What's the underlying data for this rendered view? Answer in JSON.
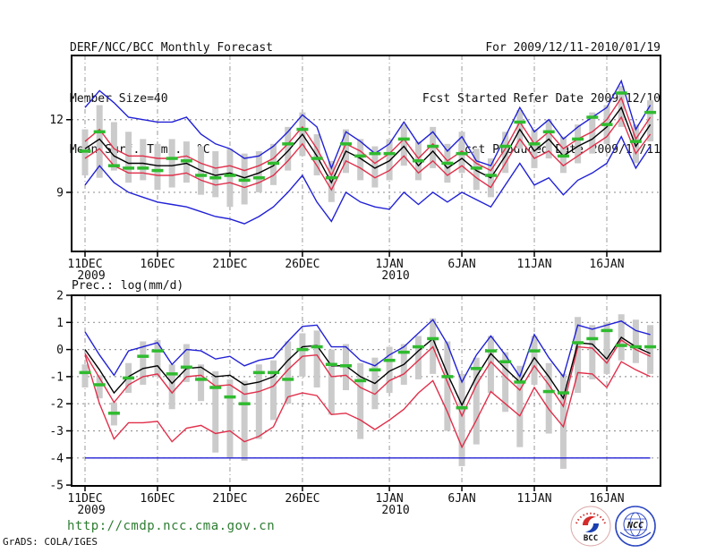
{
  "header": {
    "title": "DERF/NCC/BCC Monthly Forecast",
    "member_size": "Member Size=40",
    "temp_label": "Mean Surf. Temp.: °C",
    "for_range": "For 2009/12/11-2010/01/19",
    "fcst_started": "Fcst Started Refer Date 2009/12/10",
    "fcst_produced": "Fcst Produced Date 2009/12/11"
  },
  "footer": {
    "url": "http://cmdp.ncc.cma.gov.cn",
    "credit": "GrADS: COLA/IGES",
    "logos": {
      "bcc": "BCC",
      "ncc": "NCC"
    }
  },
  "colors": {
    "blue": "#2121d6",
    "red": "#e02f4a",
    "black": "#000000",
    "green": "#2fbb2f",
    "gray": "#cbcbcb",
    "grid": "#999999",
    "frame": "#000000",
    "url_text": "#2e7d32",
    "logo_blue": "#2b46c0",
    "logo_red": "#d42a2a"
  },
  "chart_data": [
    {
      "type": "line",
      "title": "Mean Surf. Temp.: °C",
      "ylim": [
        6.6,
        14.6
      ],
      "yticks": [
        12,
        9
      ],
      "ytick_labels": [
        "12",
        "9"
      ],
      "grid_values": [
        12,
        9
      ],
      "n_days": 40,
      "start_date": "11DEC2009",
      "end_date": "19JAN2010",
      "x_ticks": [
        {
          "day": 0,
          "label": "11DEC"
        },
        {
          "day": 5,
          "label": "16DEC"
        },
        {
          "day": 10,
          "label": "21DEC"
        },
        {
          "day": 15,
          "label": "26DEC"
        },
        {
          "day": 21,
          "label": "1JAN"
        },
        {
          "day": 26,
          "label": "6JAN"
        },
        {
          "day": 31,
          "label": "11JAN"
        },
        {
          "day": 36,
          "label": "16JAN"
        }
      ],
      "x_year_labels": [
        {
          "day": 0,
          "label": "2009"
        },
        {
          "day": 21,
          "label": "2010"
        }
      ],
      "series": [
        {
          "name": "ensemble-max",
          "color": "blue",
          "values": [
            12.5,
            13.2,
            12.7,
            12.1,
            12.0,
            11.9,
            11.9,
            12.1,
            11.4,
            11.0,
            10.8,
            10.4,
            10.5,
            10.9,
            11.5,
            12.2,
            11.7,
            10.0,
            11.5,
            11.1,
            10.6,
            11.0,
            11.9,
            11.0,
            11.5,
            10.7,
            11.3,
            10.3,
            10.1,
            11.3,
            12.5,
            11.5,
            12.0,
            11.2,
            11.7,
            12.1,
            12.5,
            13.6,
            11.6,
            12.6
          ]
        },
        {
          "name": "upper-quartile",
          "color": "red",
          "values": [
            11.1,
            11.6,
            10.8,
            10.5,
            10.5,
            10.4,
            10.4,
            10.5,
            10.2,
            10.0,
            10.1,
            9.9,
            10.1,
            10.4,
            11.0,
            11.7,
            10.8,
            9.7,
            11.0,
            10.7,
            10.2,
            10.6,
            11.2,
            10.4,
            11.0,
            10.3,
            10.7,
            10.2,
            9.9,
            10.8,
            11.9,
            11.0,
            11.5,
            10.8,
            11.2,
            11.5,
            12.0,
            12.9,
            11.2,
            12.1
          ]
        },
        {
          "name": "lower-quartile",
          "color": "red",
          "values": [
            10.4,
            10.8,
            10.1,
            9.8,
            9.8,
            9.7,
            9.7,
            9.8,
            9.5,
            9.3,
            9.4,
            9.2,
            9.4,
            9.7,
            10.3,
            11.0,
            10.1,
            9.1,
            10.3,
            10.0,
            9.6,
            9.9,
            10.5,
            9.8,
            10.3,
            9.7,
            10.1,
            9.6,
            9.2,
            10.2,
            11.2,
            10.4,
            10.7,
            10.1,
            10.5,
            10.9,
            11.3,
            12.1,
            10.6,
            11.4
          ]
        },
        {
          "name": "ensemble-min",
          "color": "blue",
          "values": [
            9.3,
            10.1,
            9.4,
            9.0,
            8.8,
            8.6,
            8.5,
            8.4,
            8.2,
            8.0,
            7.9,
            7.7,
            8.0,
            8.4,
            9.0,
            9.7,
            8.6,
            7.8,
            9.0,
            8.6,
            8.4,
            8.3,
            9.0,
            8.5,
            9.0,
            8.6,
            9.0,
            8.7,
            8.4,
            9.3,
            10.2,
            9.3,
            9.6,
            8.9,
            9.5,
            9.8,
            10.2,
            11.3,
            10.0,
            10.9
          ]
        },
        {
          "name": "ensemble-mean",
          "color": "black",
          "values": [
            10.8,
            11.2,
            10.5,
            10.2,
            10.2,
            10.1,
            10.1,
            10.2,
            9.9,
            9.7,
            9.8,
            9.6,
            9.8,
            10.1,
            10.7,
            11.4,
            10.5,
            9.4,
            10.7,
            10.4,
            10.0,
            10.3,
            10.9,
            10.1,
            10.7,
            10.0,
            10.4,
            9.9,
            9.6,
            10.5,
            11.6,
            10.7,
            11.2,
            10.5,
            10.9,
            11.2,
            11.7,
            12.5,
            10.9,
            11.8
          ]
        }
      ],
      "obs_dashes": {
        "name": "observation",
        "color": "green",
        "values": [
          10.7,
          11.5,
          10.1,
          10.0,
          10.0,
          9.9,
          10.4,
          10.3,
          9.7,
          9.6,
          9.7,
          9.5,
          9.6,
          10.2,
          11.0,
          11.6,
          10.4,
          9.6,
          11.0,
          10.5,
          10.6,
          10.6,
          11.2,
          10.3,
          10.9,
          10.2,
          10.6,
          10.0,
          9.7,
          10.9,
          11.9,
          11.0,
          11.5,
          10.5,
          11.2,
          12.1,
          11.8,
          13.1,
          11.1,
          12.3
        ]
      },
      "spread_bars": {
        "color": "gray",
        "ranges": [
          [
            9.7,
            11.6
          ],
          [
            9.6,
            12.6
          ],
          [
            9.9,
            11.9
          ],
          [
            9.4,
            11.5
          ],
          [
            9.5,
            11.2
          ],
          [
            9.1,
            11.0
          ],
          [
            9.2,
            11.2
          ],
          [
            9.4,
            11.1
          ],
          [
            8.9,
            10.9
          ],
          [
            8.8,
            10.7
          ],
          [
            8.4,
            10.8
          ],
          [
            8.5,
            10.6
          ],
          [
            9.0,
            10.7
          ],
          [
            9.3,
            11.0
          ],
          [
            9.9,
            11.7
          ],
          [
            10.5,
            12.3
          ],
          [
            9.7,
            11.4
          ],
          [
            8.6,
            10.3
          ],
          [
            9.8,
            11.6
          ],
          [
            9.5,
            11.2
          ],
          [
            9.2,
            10.9
          ],
          [
            9.5,
            11.2
          ],
          [
            10.1,
            11.8
          ],
          [
            9.5,
            11.1
          ],
          [
            10.0,
            11.7
          ],
          [
            9.4,
            11.0
          ],
          [
            9.8,
            11.5
          ],
          [
            9.1,
            10.8
          ],
          [
            8.8,
            10.4
          ],
          [
            9.8,
            11.5
          ],
          [
            10.8,
            12.4
          ],
          [
            10.0,
            11.6
          ],
          [
            10.4,
            12.0
          ],
          [
            9.8,
            11.3
          ],
          [
            10.2,
            11.8
          ],
          [
            10.6,
            12.3
          ],
          [
            11.0,
            12.6
          ],
          [
            11.7,
            13.4
          ],
          [
            10.2,
            11.8
          ],
          [
            11.1,
            12.8
          ]
        ]
      }
    },
    {
      "type": "line",
      "title": "Prec.: log(mm/d)",
      "inline_title": true,
      "ylim": [
        -5,
        2
      ],
      "yticks": [
        2,
        1,
        0,
        -1,
        -2,
        -3,
        -4,
        -5
      ],
      "ytick_labels": [
        "2",
        "1",
        "0",
        "-1",
        "-2",
        "-3",
        "-4",
        "-5"
      ],
      "grid_values": [
        1,
        0,
        -1,
        -2,
        -3,
        -4
      ],
      "n_days": 40,
      "start_date": "11DEC2009",
      "end_date": "19JAN2010",
      "x_ticks": [
        {
          "day": 0,
          "label": "11DEC"
        },
        {
          "day": 5,
          "label": "16DEC"
        },
        {
          "day": 10,
          "label": "21DEC"
        },
        {
          "day": 15,
          "label": "26DEC"
        },
        {
          "day": 21,
          "label": "1JAN"
        },
        {
          "day": 26,
          "label": "6JAN"
        },
        {
          "day": 31,
          "label": "11JAN"
        },
        {
          "day": 36,
          "label": "16JAN"
        }
      ],
      "x_year_labels": [
        {
          "day": 0,
          "label": "2009"
        },
        {
          "day": 21,
          "label": "2010"
        }
      ],
      "series": [
        {
          "name": "ensemble-max",
          "color": "blue",
          "values": [
            0.65,
            -0.2,
            -0.95,
            -0.05,
            0.1,
            0.25,
            -0.55,
            0.0,
            -0.05,
            -0.35,
            -0.25,
            -0.6,
            -0.4,
            -0.3,
            0.3,
            0.85,
            0.9,
            0.1,
            0.1,
            -0.4,
            -0.6,
            -0.2,
            0.1,
            0.6,
            1.1,
            0.2,
            -1.2,
            -0.2,
            0.5,
            -0.2,
            -1.0,
            0.55,
            -0.3,
            -1.0,
            0.9,
            0.75,
            0.9,
            1.05,
            0.7,
            0.55
          ]
        },
        {
          "name": "upper-quartile",
          "color": "red",
          "values": [
            -0.15,
            -1.05,
            -1.95,
            -1.3,
            -1.0,
            -0.9,
            -1.6,
            -1.0,
            -0.95,
            -1.35,
            -1.3,
            -1.65,
            -1.55,
            -1.35,
            -0.75,
            -0.25,
            -0.2,
            -1.0,
            -0.95,
            -1.4,
            -1.65,
            -1.15,
            -0.9,
            -0.4,
            0.1,
            -1.2,
            -2.45,
            -1.3,
            -0.45,
            -1.0,
            -1.5,
            -0.6,
            -1.3,
            -2.1,
            0.1,
            0.05,
            -0.5,
            0.35,
            0.0,
            -0.25
          ]
        },
        {
          "name": "lower-quartile",
          "color": "red",
          "values": [
            -0.2,
            -2.0,
            -3.3,
            -2.7,
            -2.7,
            -2.65,
            -3.4,
            -2.9,
            -2.8,
            -3.1,
            -3.0,
            -3.4,
            -3.2,
            -2.85,
            -1.75,
            -1.6,
            -1.7,
            -2.4,
            -2.35,
            -2.6,
            -2.95,
            -2.6,
            -2.2,
            -1.6,
            -1.15,
            -2.3,
            -3.6,
            -2.6,
            -1.55,
            -2.0,
            -2.45,
            -1.4,
            -2.2,
            -2.85,
            -0.85,
            -0.9,
            -1.4,
            -0.45,
            -0.75,
            -1.0
          ]
        },
        {
          "name": "ensemble-min",
          "color": "blue",
          "values": [
            -4,
            -4,
            -4,
            -4,
            -4,
            -4,
            -4,
            -4,
            -4,
            -4,
            -4,
            -4,
            -4,
            -4,
            -4,
            -4,
            -4,
            -4,
            -4,
            -4,
            -4,
            -4,
            -4,
            -4,
            -4,
            -4,
            -4,
            -4,
            -4,
            -4,
            -4,
            -4,
            -4,
            -4,
            -4,
            -4,
            -4,
            -4,
            -4,
            -4
          ]
        },
        {
          "name": "ensemble-mean",
          "color": "black",
          "values": [
            0.0,
            -0.75,
            -1.6,
            -1.0,
            -0.7,
            -0.6,
            -1.25,
            -0.7,
            -0.65,
            -1.0,
            -0.95,
            -1.3,
            -1.2,
            -1.0,
            -0.4,
            0.1,
            0.15,
            -0.6,
            -0.6,
            -1.0,
            -1.25,
            -0.8,
            -0.55,
            -0.05,
            0.4,
            -0.9,
            -2.05,
            -1.0,
            -0.15,
            -0.7,
            -1.2,
            -0.3,
            -1.0,
            -1.8,
            0.25,
            0.2,
            -0.35,
            0.45,
            0.1,
            -0.15
          ]
        }
      ],
      "obs_dashes": {
        "name": "observation",
        "color": "green",
        "values": [
          -0.85,
          -1.3,
          -2.35,
          -1.05,
          -0.25,
          -0.05,
          -0.9,
          -0.65,
          -1.1,
          -1.4,
          -1.75,
          -2.0,
          -0.85,
          -0.85,
          -1.1,
          0.0,
          0.1,
          -0.55,
          -0.6,
          -1.15,
          -0.75,
          -0.4,
          -0.1,
          0.1,
          0.4,
          -1.0,
          -2.15,
          -0.7,
          -0.05,
          -0.45,
          -1.2,
          -0.05,
          -1.55,
          -1.6,
          0.25,
          0.4,
          0.7,
          0.15,
          0.1,
          0.1
        ]
      },
      "spread_bars": {
        "color": "gray",
        "ranges": [
          [
            -1.4,
            -0.55
          ],
          [
            -1.8,
            -0.95
          ],
          [
            -2.8,
            -1.95
          ],
          [
            -1.6,
            -0.5
          ],
          [
            -1.3,
            0.3
          ],
          [
            -1.0,
            0.35
          ],
          [
            -2.2,
            -0.55
          ],
          [
            -1.2,
            0.2
          ],
          [
            -1.9,
            -0.55
          ],
          [
            -3.8,
            -0.8
          ],
          [
            -4.0,
            -1.1
          ],
          [
            -4.1,
            -1.15
          ],
          [
            -3.3,
            -0.55
          ],
          [
            -2.6,
            -0.4
          ],
          [
            -2.0,
            0.3
          ],
          [
            -1.0,
            0.6
          ],
          [
            -1.4,
            0.7
          ],
          [
            -2.4,
            0.0
          ],
          [
            -1.5,
            0.2
          ],
          [
            -3.3,
            -0.5
          ],
          [
            -2.2,
            -0.3
          ],
          [
            -1.6,
            0.1
          ],
          [
            -1.3,
            0.2
          ],
          [
            -1.1,
            0.5
          ],
          [
            -0.9,
            1.15
          ],
          [
            -3.0,
            0.3
          ],
          [
            -4.3,
            -0.9
          ],
          [
            -3.5,
            -0.3
          ],
          [
            -1.6,
            0.5
          ],
          [
            -2.3,
            -0.1
          ],
          [
            -3.6,
            -0.6
          ],
          [
            -1.3,
            0.5
          ],
          [
            -3.1,
            -0.5
          ],
          [
            -4.4,
            -0.9
          ],
          [
            -1.6,
            1.2
          ],
          [
            -1.1,
            0.9
          ],
          [
            -0.9,
            1.0
          ],
          [
            -0.4,
            1.3
          ],
          [
            -0.5,
            1.1
          ],
          [
            -0.9,
            0.9
          ]
        ]
      }
    }
  ]
}
